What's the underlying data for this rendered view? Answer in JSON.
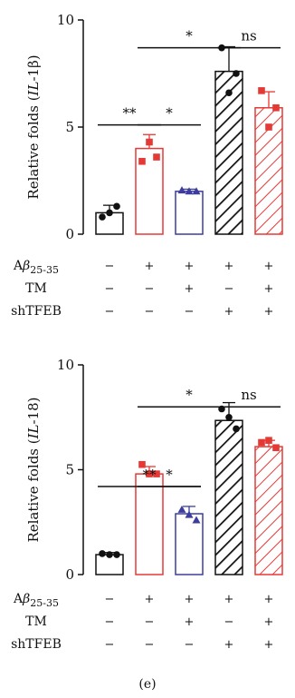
{
  "colors": {
    "black": "#111111",
    "red": "#e53935",
    "blue": "#3d3d9e",
    "white": "#ffffff"
  },
  "figure_caption": "(e)",
  "chart_data": [
    {
      "type": "bar",
      "ylabel_prefix": "Relative folds (",
      "ylabel_gene": "IL",
      "ylabel_suffix": "-1β)",
      "ylim": [
        0,
        10
      ],
      "yticks": [
        "0",
        "5",
        "10"
      ],
      "groups": [
        {
          "value": 1.0,
          "points": [
            0.8,
            1.3,
            1.0
          ],
          "color": "black",
          "fill": "open",
          "marker": "circle"
        },
        {
          "value": 4.0,
          "points": [
            3.4,
            3.6,
            4.3
          ],
          "color": "red",
          "fill": "open",
          "marker": "square"
        },
        {
          "value": 2.0,
          "points": [
            2.05,
            2.0,
            2.0
          ],
          "color": "blue",
          "fill": "open",
          "marker": "triangle"
        },
        {
          "value": 7.6,
          "points": [
            8.7,
            7.5,
            6.6
          ],
          "color": "black",
          "fill": "hatch",
          "marker": "circle"
        },
        {
          "value": 5.9,
          "points": [
            6.7,
            5.9,
            5.0
          ],
          "color": "red",
          "fill": "hatch",
          "marker": "square"
        }
      ],
      "errors": [
        0.35,
        0.65,
        0.1,
        1.15,
        0.75
      ],
      "significance": [
        {
          "from": 0,
          "to": 1,
          "label": "**",
          "y": 5.1
        },
        {
          "from": 1,
          "to": 2,
          "label": "*",
          "y": 5.1
        },
        {
          "from": 1,
          "to": 3,
          "label": "*",
          "y": 8.7
        },
        {
          "from": 3,
          "to": 4,
          "label": "ns",
          "y": 8.7
        }
      ],
      "conditions": [
        {
          "label_main": "A",
          "label_greek": "β",
          "label_sub": "25-35",
          "signs": [
            "−",
            "+",
            "+",
            "+",
            "+"
          ]
        },
        {
          "label_main": "TM",
          "label_greek": "",
          "label_sub": "",
          "signs": [
            "−",
            "−",
            "+",
            "−",
            "+"
          ]
        },
        {
          "label_main": "shTFEB",
          "label_greek": "",
          "label_sub": "",
          "signs": [
            "−",
            "−",
            "−",
            "+",
            "+"
          ]
        }
      ]
    },
    {
      "type": "bar",
      "ylabel_prefix": "Relative folds (",
      "ylabel_gene": "IL",
      "ylabel_suffix": "-18)",
      "ylim": [
        0,
        10
      ],
      "yticks": [
        "0",
        "5",
        "10"
      ],
      "groups": [
        {
          "value": 0.95,
          "points": [
            1.0,
            0.95,
            0.95
          ],
          "color": "black",
          "fill": "open",
          "marker": "circle"
        },
        {
          "value": 4.8,
          "points": [
            5.25,
            4.8,
            4.8
          ],
          "color": "red",
          "fill": "open",
          "marker": "square"
        },
        {
          "value": 2.9,
          "points": [
            3.1,
            2.6,
            2.85
          ],
          "color": "blue",
          "fill": "open",
          "marker": "triangle"
        },
        {
          "value": 7.35,
          "points": [
            7.9,
            6.95,
            7.5
          ],
          "color": "black",
          "fill": "hatch",
          "marker": "circle"
        },
        {
          "value": 6.1,
          "points": [
            6.3,
            6.05,
            6.4
          ],
          "color": "red",
          "fill": "hatch",
          "marker": "square"
        }
      ],
      "errors": [
        0.1,
        0.35,
        0.35,
        0.85,
        0.3
      ],
      "significance": [
        {
          "from": 0,
          "to": 2,
          "label": "**",
          "y": 4.2
        },
        {
          "from": 1,
          "to": 2,
          "label": "*",
          "y": 4.2
        },
        {
          "from": 1,
          "to": 3,
          "label": "*",
          "y": 8.0
        },
        {
          "from": 3,
          "to": 4,
          "label": "ns",
          "y": 8.0
        }
      ],
      "conditions": [
        {
          "label_main": "A",
          "label_greek": "β",
          "label_sub": "25-35",
          "signs": [
            "−",
            "+",
            "+",
            "+",
            "+"
          ]
        },
        {
          "label_main": "TM",
          "label_greek": "",
          "label_sub": "",
          "signs": [
            "−",
            "−",
            "+",
            "−",
            "+"
          ]
        },
        {
          "label_main": "shTFEB",
          "label_greek": "",
          "label_sub": "",
          "signs": [
            "−",
            "−",
            "−",
            "+",
            "+"
          ]
        }
      ]
    }
  ]
}
